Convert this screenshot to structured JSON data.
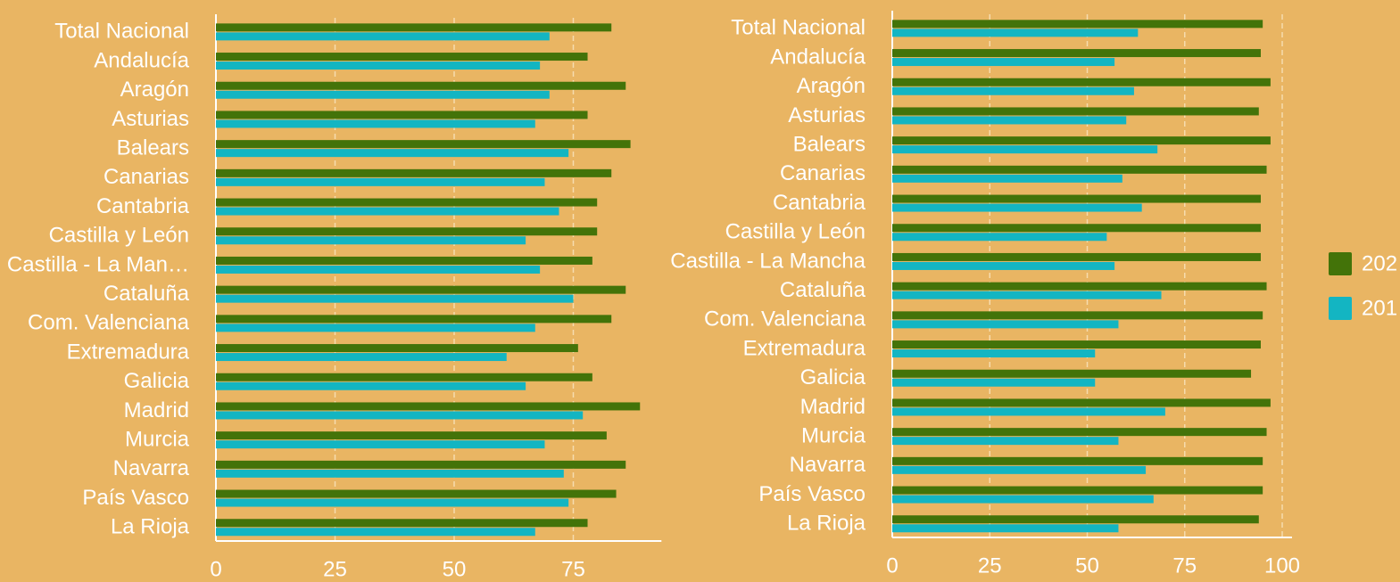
{
  "chart_data": [
    {
      "type": "bar",
      "orientation": "horizontal",
      "categories": [
        "Total Nacional",
        "Andalucía",
        "Aragón",
        "Asturias",
        "Balears",
        "Canarias",
        "Cantabria",
        "Castilla y León",
        "Castilla - La Man…",
        "Cataluña",
        "Com. Valenciana",
        "Extremadura",
        "Galicia",
        "Madrid",
        "Murcia",
        "Navarra",
        "País Vasco",
        "La Rioja"
      ],
      "series": [
        {
          "color": "#437309",
          "values": [
            83,
            78,
            86,
            78,
            87,
            83,
            80,
            80,
            79,
            86,
            83,
            76,
            79,
            89,
            82,
            86,
            84,
            78
          ]
        },
        {
          "color": "#13b5c2",
          "values": [
            70,
            68,
            70,
            67,
            74,
            69,
            72,
            65,
            68,
            75,
            67,
            61,
            65,
            77,
            69,
            73,
            74,
            67
          ]
        }
      ],
      "xlim": [
        0,
        93.5
      ],
      "xticks": [
        0,
        25,
        50,
        75
      ],
      "grid": true
    },
    {
      "type": "bar",
      "orientation": "horizontal",
      "categories": [
        "Total Nacional",
        "Andalucía",
        "Aragón",
        "Asturias",
        "Balears",
        "Canarias",
        "Cantabria",
        "Castilla y León",
        "Castilla - La Mancha",
        "Cataluña",
        "Com. Valenciana",
        "Extremadura",
        "Galicia",
        "Madrid",
        "Murcia",
        "Navarra",
        "País Vasco",
        "La Rioja"
      ],
      "series": [
        {
          "color": "#437309",
          "values": [
            95,
            94.5,
            97,
            94,
            97,
            96,
            94.5,
            94.5,
            94.5,
            96,
            95,
            94.5,
            92,
            97,
            96,
            95,
            95,
            94
          ]
        },
        {
          "color": "#13b5c2",
          "values": [
            63,
            57,
            62,
            60,
            68,
            59,
            64,
            55,
            57,
            69,
            58,
            52,
            52,
            70,
            58,
            65,
            67,
            58
          ]
        }
      ],
      "xlim": [
        0,
        102.5
      ],
      "xticks": [
        0,
        25,
        50,
        75,
        100
      ],
      "grid": true
    }
  ],
  "legend": [
    {
      "name": "202",
      "color": "#437309"
    },
    {
      "name": "201",
      "color": "#13b5c2"
    }
  ]
}
